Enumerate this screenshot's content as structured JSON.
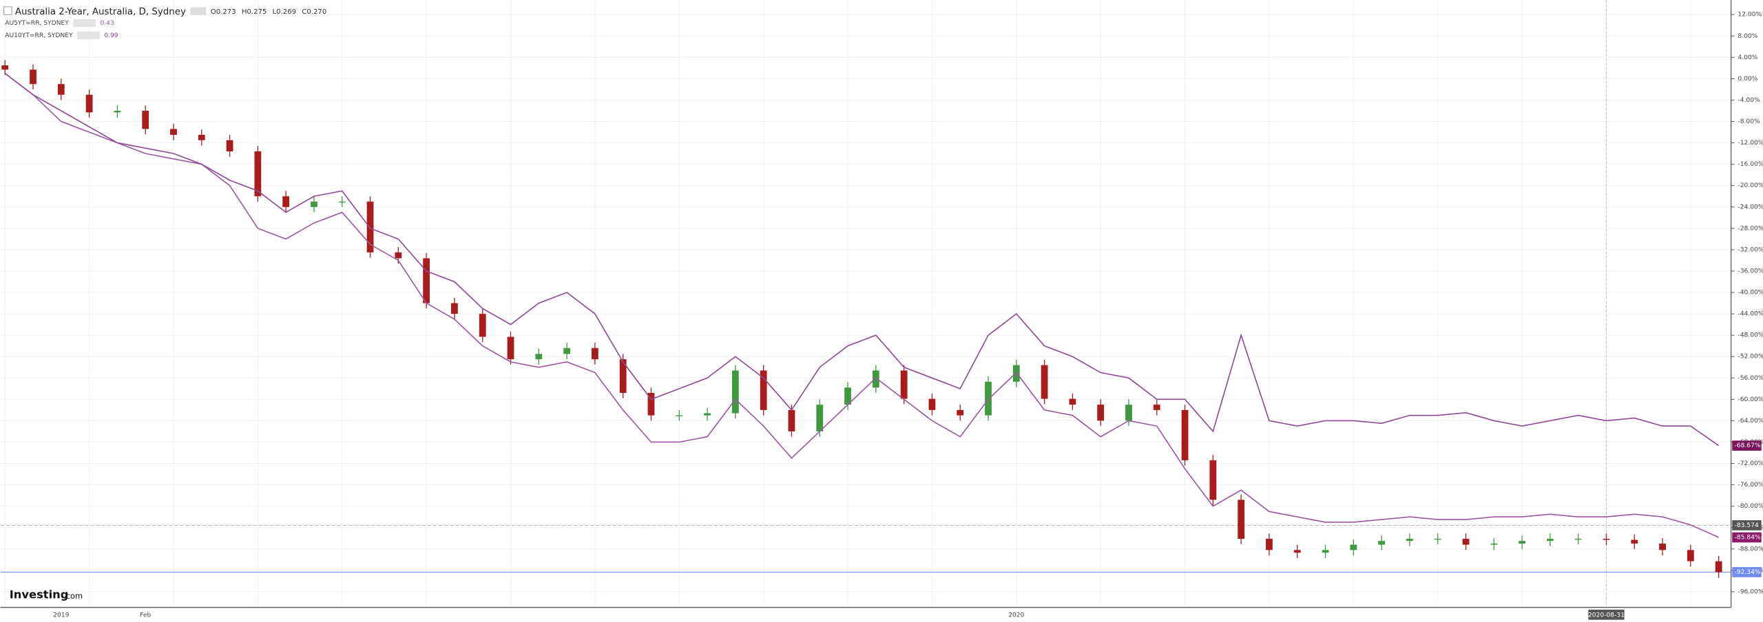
{
  "chart_data": {
    "type": "candlestick",
    "categories": [
      null,
      null,
      "2019",
      null,
      null,
      "Feb",
      null,
      null,
      null,
      null,
      null,
      null,
      null,
      null,
      null,
      null,
      null,
      null,
      null,
      null,
      null,
      null,
      null,
      null,
      null,
      null,
      null,
      null,
      null,
      null,
      null,
      null,
      null,
      null,
      null,
      null,
      "2020",
      null,
      null,
      null,
      null,
      null,
      null,
      null,
      null,
      null,
      null,
      null,
      null,
      null,
      null,
      null,
      null,
      null,
      null,
      null,
      null,
      "2020-08-31",
      null,
      null,
      null,
      null
    ],
    "ylim": [
      12,
      -96
    ],
    "yticks": [
      {
        "value": 12,
        "label": "12.00%"
      },
      {
        "value": 8,
        "label": "8.00%"
      },
      {
        "value": 4,
        "label": "4.00%"
      },
      {
        "value": 0,
        "label": "0.00%"
      },
      {
        "value": -4,
        "label": "-4.00%"
      },
      {
        "value": -8,
        "label": "-8.00%"
      },
      {
        "value": -12,
        "label": "-12.00%"
      },
      {
        "value": -16,
        "label": "-16.00%"
      },
      {
        "value": -20,
        "label": "-20.00%"
      },
      {
        "value": -24,
        "label": "-24.00%"
      },
      {
        "value": -28,
        "label": "-28.00%"
      },
      {
        "value": -32,
        "label": "-32.00%"
      },
      {
        "value": -36,
        "label": "-36.00%"
      },
      {
        "value": -40,
        "label": "-40.00%"
      },
      {
        "value": -44,
        "label": "-44.00%"
      },
      {
        "value": -48,
        "label": "-48.00%"
      },
      {
        "value": -52,
        "label": "-52.00%"
      },
      {
        "value": -56,
        "label": "-56.00%"
      },
      {
        "value": -60,
        "label": "-60.00%"
      },
      {
        "value": -64,
        "label": "-64.00%"
      },
      {
        "value": -68,
        "label": "-68.00%"
      },
      {
        "value": -72,
        "label": "-72.00%"
      },
      {
        "value": -76,
        "label": "-76.00%"
      },
      {
        "value": -80,
        "label": "-80.00%"
      },
      {
        "value": -84,
        "label": "-84.00%"
      },
      {
        "value": -88,
        "label": "-88.00%"
      },
      {
        "value": -92,
        "label": "-92.00%"
      },
      {
        "value": -96,
        "label": "-96.00%"
      }
    ],
    "grid": true,
    "hline": {
      "value": -83.574,
      "label": "-83.574"
    },
    "watermark": [
      "Investing",
      ".com"
    ],
    "series": [
      {
        "name": "Australia 2-Year, Australia, D, Sydney",
        "ohlc_labels": [
          "O0.273",
          "H0.275",
          "L0.269",
          "C0.270"
        ],
        "up_color": "#3f9a3f",
        "down_color": "#a81c1c",
        "last_color": "#6f8cf0",
        "open": [
          2.5,
          1.7,
          -1,
          -3,
          -6.3,
          -6,
          -9.4,
          -10.5,
          -11.5,
          -13.6,
          -22,
          -24,
          -23,
          -23,
          -32.5,
          -33.6,
          -42,
          -44,
          -48.3,
          -52.5,
          -51.5,
          -50.4,
          -52.5,
          -58.8,
          -63,
          -63,
          -62.6,
          -54.6,
          -62,
          -66,
          -61,
          -57.8,
          -54.6,
          -59.9,
          -62,
          -63,
          -56.7,
          -53.6,
          -59.9,
          -61,
          -64,
          -61,
          -62,
          -71.4,
          -78.8,
          -86.1,
          -88.2,
          -88.7,
          -88.2,
          -87.2,
          -86.5,
          -86.1,
          -86.1,
          -87.2,
          -87,
          -86.5,
          -86.1,
          -86.1,
          -86.3,
          -87,
          -88.2,
          -90.3
        ],
        "high": [
          3.5,
          2.7,
          0,
          -2,
          -5,
          -5,
          -8.4,
          -9.5,
          -10.5,
          -12.6,
          -21,
          -22,
          -22,
          -22,
          -31.5,
          -32.6,
          -41,
          -43,
          -47.3,
          -50.5,
          -49.4,
          -49.4,
          -51.5,
          -57.8,
          -62,
          -61.6,
          -53.6,
          -53.6,
          -61,
          -60,
          -56.8,
          -53.6,
          -53.6,
          -58.9,
          -61,
          -55.7,
          -52.6,
          -52.6,
          -58.9,
          -60,
          -60,
          -60,
          -61,
          -70.4,
          -77.8,
          -85.1,
          -87.2,
          -87.2,
          -86.2,
          -85.5,
          -85.1,
          -85.1,
          -85.1,
          -86,
          -85.5,
          -85.1,
          -85.1,
          -85.1,
          -85.3,
          -86,
          -87.2,
          -89.3
        ],
        "low": [
          0.7,
          -2,
          -4,
          -7.3,
          -7.3,
          -10.4,
          -11.5,
          -12.5,
          -14.6,
          -23,
          -25,
          -25,
          -24,
          -33.5,
          -34.6,
          -43,
          -45,
          -49.3,
          -53.5,
          -53.5,
          -52.5,
          -53.5,
          -59.8,
          -64,
          -64,
          -64,
          -63.6,
          -63,
          -67,
          -67,
          -62,
          -58.8,
          -60.9,
          -63,
          -64,
          -64,
          -57.7,
          -60.9,
          -62,
          -65,
          -65,
          -63,
          -72.4,
          -79.8,
          -87.1,
          -89.2,
          -89.7,
          -89.7,
          -89.2,
          -88.2,
          -87.5,
          -87.1,
          -88.2,
          -88.2,
          -88,
          -87.5,
          -87.1,
          -87.3,
          -88,
          -89.2,
          -91.3,
          -93.4
        ],
        "close": [
          1.7,
          -1,
          -3,
          -6.3,
          -6,
          -9.4,
          -10.5,
          -11.5,
          -13.6,
          -22,
          -24,
          -23,
          -23,
          -32.5,
          -33.6,
          -42,
          -44,
          -48.3,
          -52.5,
          -51.5,
          -50.4,
          -52.5,
          -58.8,
          -63,
          -63,
          -62.6,
          -54.6,
          -62,
          -66,
          -61,
          -57.8,
          -54.6,
          -59.9,
          -62,
          -63,
          -56.7,
          -53.6,
          -59.9,
          -61,
          -64,
          -61,
          -62,
          -71.4,
          -78.8,
          -86.1,
          -88.2,
          -88.7,
          -88.2,
          -87.2,
          -86.5,
          -86.1,
          -86.1,
          -87.2,
          -87,
          -86.5,
          -86.1,
          -86.1,
          -86.3,
          -87,
          -88.2,
          -90.3,
          -92.34
        ],
        "close_labels": [
          null,
          null,
          null,
          null,
          null,
          null,
          null,
          null,
          null,
          null,
          null,
          null,
          null,
          null,
          null,
          null,
          null,
          null,
          null,
          null,
          null,
          null,
          null,
          null,
          null,
          null,
          null,
          null,
          null,
          null,
          null,
          null,
          null,
          null,
          null,
          null,
          null,
          null,
          null,
          null,
          null,
          null,
          null,
          null,
          null,
          null,
          null,
          null,
          null,
          null,
          null,
          null,
          null,
          null,
          null,
          null,
          null,
          null,
          null,
          null,
          null,
          "-92.34%"
        ]
      },
      {
        "name": "AU5YT=RR, SYDNEY",
        "legend_value": "0.43",
        "color": "#9b58a0",
        "label_color": "#8b1a6b",
        "values": [
          1,
          -3,
          -8,
          -10,
          -12,
          -14,
          -15,
          -16,
          -20,
          -28,
          -30,
          -27,
          -25,
          -31,
          -34,
          -42,
          -45,
          -50,
          -53,
          -54,
          -53,
          -55,
          -62,
          -68,
          -68,
          -67,
          -60,
          -65,
          -71,
          -66,
          -61,
          -56,
          -60,
          -64,
          -67,
          -60,
          -55,
          -62,
          -63,
          -67,
          -64,
          -65,
          -73,
          -80,
          -77,
          -81,
          -82,
          -83,
          -83,
          -82.5,
          -82,
          -82.5,
          -82.5,
          -82,
          -82,
          -81.5,
          -82,
          -82,
          -81.5,
          -82,
          -83.5,
          -85.84
        ],
        "value_labels": [
          null,
          null,
          null,
          null,
          null,
          null,
          null,
          null,
          null,
          null,
          null,
          null,
          null,
          null,
          null,
          null,
          null,
          null,
          null,
          null,
          null,
          null,
          null,
          null,
          null,
          null,
          null,
          null,
          null,
          null,
          null,
          null,
          null,
          null,
          null,
          null,
          null,
          null,
          null,
          null,
          null,
          null,
          null,
          null,
          null,
          null,
          null,
          null,
          null,
          null,
          null,
          null,
          null,
          null,
          null,
          null,
          null,
          null,
          null,
          null,
          null,
          "-85.84%"
        ]
      },
      {
        "name": "AU10YT=RR, SYDNEY",
        "legend_value": "0.99",
        "color": "#8e4a93",
        "label_color": "#7a1460",
        "values": [
          1,
          -3,
          -6,
          -9,
          -12,
          -13,
          -14,
          -16,
          -19,
          -21,
          -25,
          -22,
          -21,
          -28,
          -30,
          -36,
          -38,
          -43,
          -46,
          -42,
          -40,
          -44,
          -53,
          -60,
          -58,
          -56,
          -52,
          -56,
          -62,
          -54,
          -50,
          -48,
          -54,
          -56,
          -58,
          -48,
          -44,
          -50,
          -52,
          -55,
          -56,
          -60,
          -60,
          -66,
          -48,
          -64,
          -65,
          -64,
          -64,
          -64.5,
          -63,
          -63,
          -62.5,
          -64,
          -65,
          -64,
          -63,
          -64,
          -63.5,
          -65,
          -65,
          -68.67
        ],
        "value_labels": [
          null,
          null,
          null,
          null,
          null,
          null,
          null,
          null,
          null,
          null,
          null,
          null,
          null,
          null,
          null,
          null,
          null,
          null,
          null,
          null,
          null,
          null,
          null,
          null,
          null,
          null,
          null,
          null,
          null,
          null,
          null,
          null,
          null,
          null,
          null,
          null,
          null,
          null,
          null,
          null,
          null,
          null,
          null,
          null,
          null,
          null,
          null,
          null,
          null,
          null,
          null,
          null,
          null,
          null,
          null,
          null,
          null,
          null,
          null,
          null,
          null,
          "-68.67%"
        ]
      }
    ]
  }
}
